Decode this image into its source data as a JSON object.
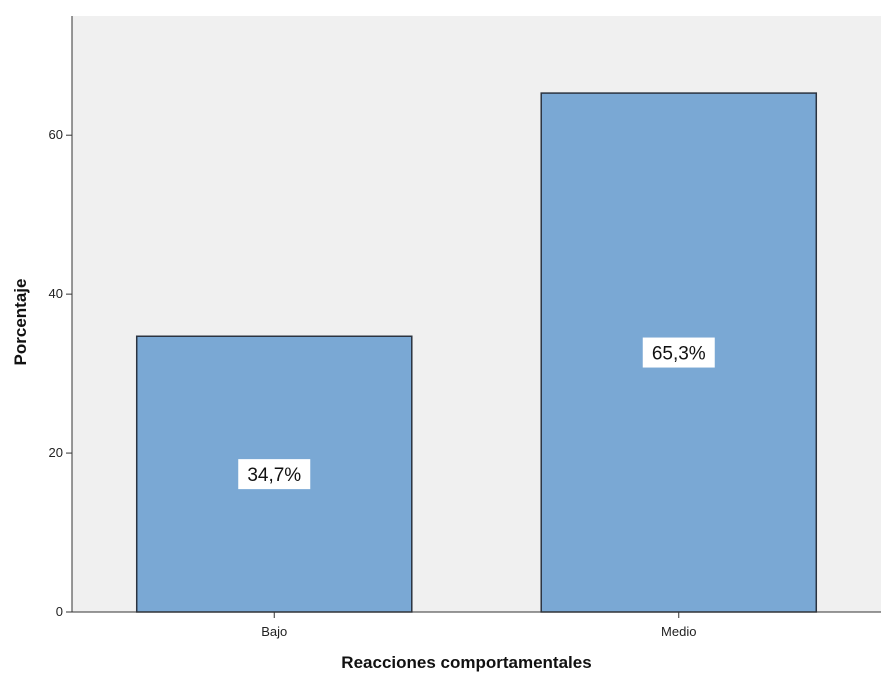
{
  "chart_data": {
    "type": "bar",
    "categories": [
      "Bajo",
      "Medio"
    ],
    "values": [
      34.7,
      65.3
    ],
    "data_labels": [
      "34,7%",
      "65,3%"
    ],
    "xlabel": "Reacciones comportamentales",
    "ylabel": "Porcentaje",
    "ylim": [
      0,
      75
    ],
    "yticks": [
      0,
      20,
      40,
      60
    ],
    "ytick_labels": [
      "0",
      "20",
      "40",
      "60"
    ],
    "grid": false,
    "legend": "none"
  },
  "colors": {
    "plot_background": "#f0f0f0",
    "bar_fill": "#7aa8d4",
    "bar_stroke": "#2b3340",
    "axis": "#333333",
    "label_box": "#ffffff"
  }
}
